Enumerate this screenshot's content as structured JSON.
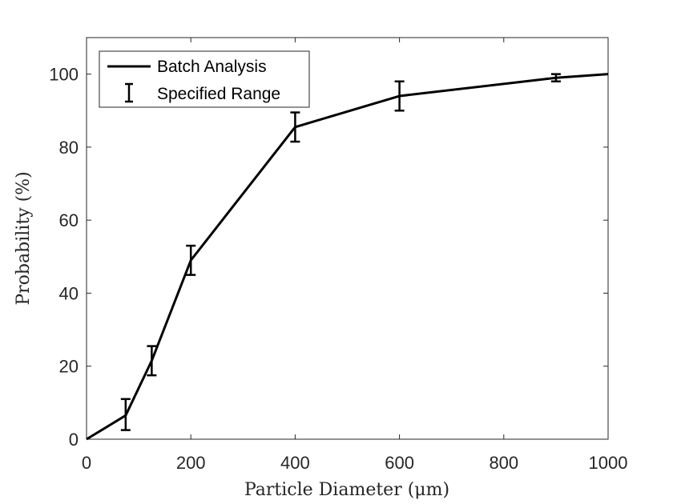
{
  "chart_data": {
    "type": "line",
    "xlabel": "Particle Diameter (μm)",
    "ylabel": "Probability (%)",
    "xlim": [
      0,
      1000
    ],
    "ylim": [
      0,
      110
    ],
    "x_ticks": [
      0,
      200,
      400,
      600,
      800,
      1000
    ],
    "y_ticks": [
      0,
      20,
      40,
      60,
      80,
      100
    ],
    "x_tick_labels": [
      "0",
      "200",
      "400",
      "600",
      "800",
      "1000"
    ],
    "y_tick_labels": [
      "0",
      "20",
      "40",
      "60",
      "80",
      "100"
    ],
    "grid": false,
    "legend": {
      "placement": "top-left",
      "entries": [
        "Batch Analysis",
        "Specified Range"
      ]
    },
    "series": [
      {
        "name": "Batch Analysis",
        "x": [
          0,
          75,
          125,
          200,
          400,
          600,
          900,
          1000
        ],
        "y": [
          0,
          6.5,
          21.5,
          49,
          85.5,
          94,
          99,
          100
        ]
      }
    ],
    "error_bars": {
      "name": "Specified Range",
      "x": [
        75,
        125,
        200,
        400,
        600,
        900
      ],
      "lower": [
        2.5,
        17.5,
        45,
        81.5,
        90,
        98
      ],
      "upper": [
        11,
        25.5,
        53,
        89.5,
        98,
        100
      ]
    },
    "colors": {
      "line": "#000000",
      "axis": "#262626"
    }
  }
}
